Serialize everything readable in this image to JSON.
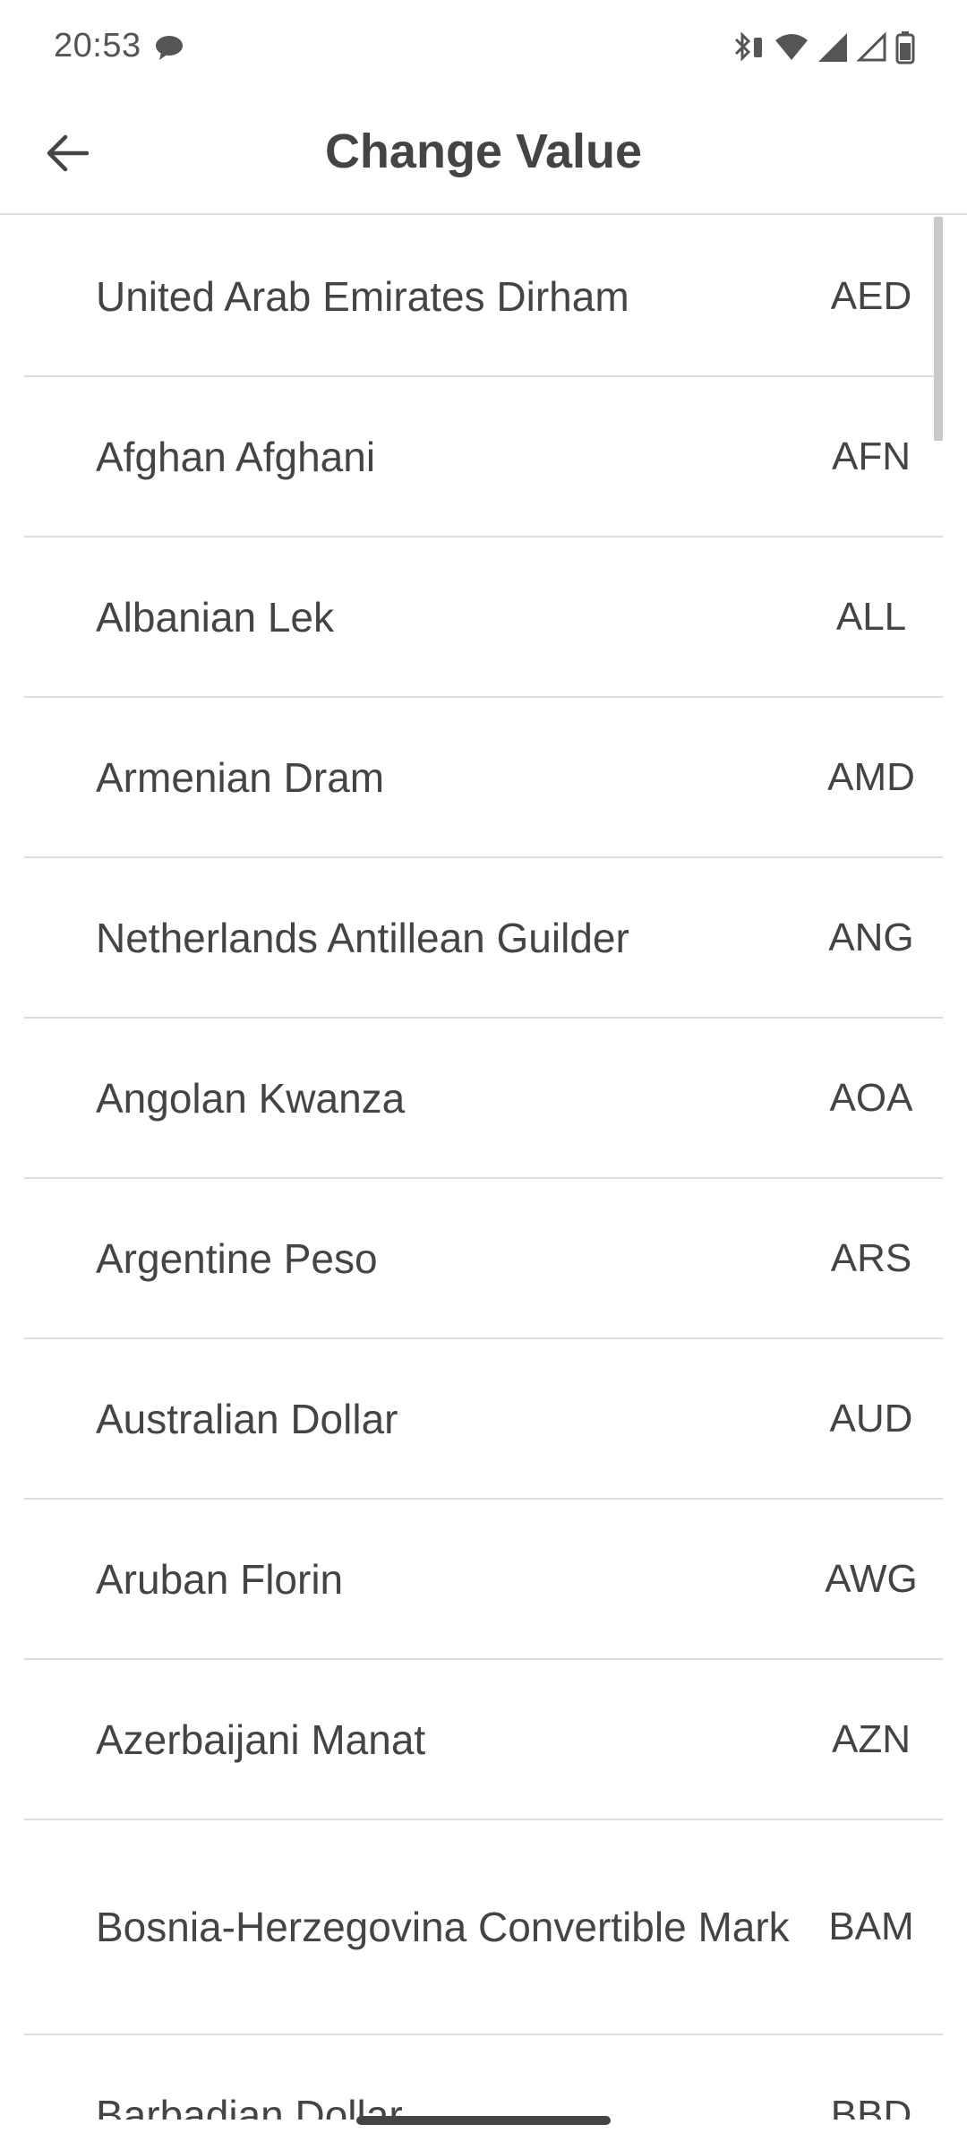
{
  "status_bar": {
    "time": "20:53",
    "icons": [
      "chat-bubble-icon",
      "bluetooth-icon",
      "wifi-icon",
      "signal-icon",
      "signal-outline-icon",
      "battery-icon"
    ]
  },
  "app_bar": {
    "title": "Change Value",
    "back_icon": "back-arrow-icon"
  },
  "currencies": [
    {
      "name": "United Arab Emirates Dirham",
      "code": "AED"
    },
    {
      "name": "Afghan Afghani",
      "code": "AFN"
    },
    {
      "name": "Albanian Lek",
      "code": "ALL"
    },
    {
      "name": "Armenian Dram",
      "code": "AMD"
    },
    {
      "name": "Netherlands Antillean Guilder",
      "code": "ANG"
    },
    {
      "name": "Angolan Kwanza",
      "code": "AOA"
    },
    {
      "name": "Argentine Peso",
      "code": "ARS"
    },
    {
      "name": "Australian Dollar",
      "code": "AUD"
    },
    {
      "name": "Aruban Florin",
      "code": "AWG"
    },
    {
      "name": "Azerbaijani Manat",
      "code": "AZN"
    },
    {
      "name": "Bosnia-Herzegovina Convertible Mark",
      "code": "BAM"
    },
    {
      "name": "Barbadian Dollar",
      "code": "BBD"
    }
  ]
}
